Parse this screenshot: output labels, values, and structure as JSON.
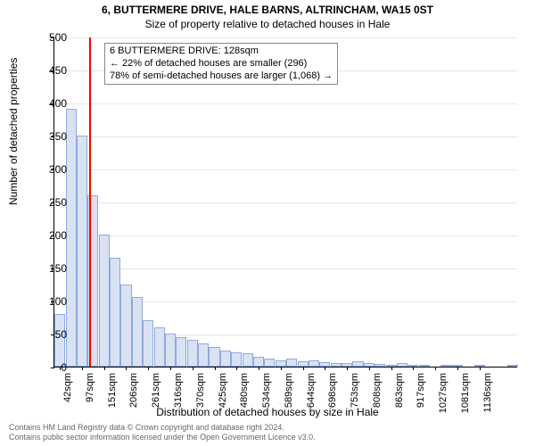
{
  "title": "6, BUTTERMERE DRIVE, HALE BARNS, ALTRINCHAM, WA15 0ST",
  "subtitle": "Size of property relative to detached houses in Hale",
  "ylabel": "Number of detached properties",
  "xlabel": "Distribution of detached houses by size in Hale",
  "chart": {
    "type": "histogram-bar",
    "ylim": [
      0,
      500
    ],
    "ytick_step": 50,
    "grid_color": "#e6e6e6",
    "background_color": "#ffffff",
    "bar_fill": "#d8e2f3",
    "bar_stroke": "#8faadc",
    "marker_color": "#ff0000",
    "marker_x_value": 128,
    "x_start": 42,
    "x_step": 27.3,
    "x_labels_every": 2,
    "x_count": 42,
    "xtick_labels": [
      "42sqm",
      "97sqm",
      "151sqm",
      "206sqm",
      "261sqm",
      "316sqm",
      "370sqm",
      "425sqm",
      "480sqm",
      "534sqm",
      "589sqm",
      "644sqm",
      "698sqm",
      "753sqm",
      "808sqm",
      "863sqm",
      "917sqm",
      "1027sqm",
      "1081sqm",
      "1136sqm"
    ],
    "bars": [
      80,
      390,
      350,
      260,
      200,
      165,
      125,
      105,
      70,
      60,
      50,
      45,
      40,
      35,
      30,
      25,
      22,
      20,
      15,
      12,
      10,
      12,
      8,
      10,
      7,
      6,
      5,
      8,
      5,
      4,
      3,
      6,
      3,
      2,
      0,
      3,
      2,
      0,
      3,
      0,
      0,
      2
    ],
    "bar_width_ratio": 0.98
  },
  "annotation": {
    "line1": "6 BUTTERMERE DRIVE: 128sqm",
    "line2": "← 22% of detached houses are smaller (296)",
    "line3": "78% of semi-detached houses are larger (1,068) →"
  },
  "footer": {
    "line1": "Contains HM Land Registry data © Crown copyright and database right 2024.",
    "line2": "Contains public sector information licensed under the Open Government Licence v3.0."
  }
}
